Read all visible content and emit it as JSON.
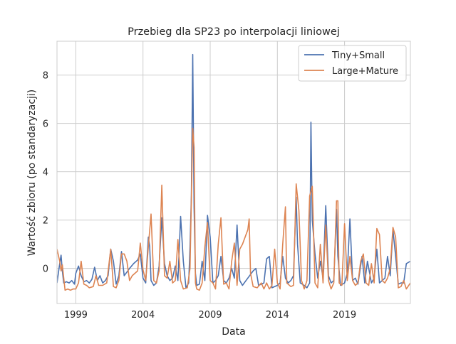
{
  "chart_data": {
    "type": "line",
    "title": "Przebieg dla SP23 po interpolacji liniowej",
    "xlabel": "Data",
    "ylabel": "Wartość zbioru (po standaryzacji)",
    "xlim": [
      1997.6,
      2023.9
    ],
    "ylim": [
      -1.45,
      9.4
    ],
    "x_ticks": [
      1999,
      2004,
      2009,
      2014,
      2019
    ],
    "y_ticks": [
      0,
      2,
      4,
      6,
      8
    ],
    "grid": true,
    "legend_position": "top-right",
    "series": [
      {
        "name": "Tiny+Small",
        "color": "#4c72b0",
        "points": [
          [
            1997.6,
            -0.6
          ],
          [
            1997.8,
            0.2
          ],
          [
            1997.9,
            0.55
          ],
          [
            1998.0,
            -0.1
          ],
          [
            1998.1,
            -0.6
          ],
          [
            1998.3,
            -0.55
          ],
          [
            1998.5,
            -0.6
          ],
          [
            1998.7,
            -0.5
          ],
          [
            1998.9,
            -0.65
          ],
          [
            1999.0,
            -0.2
          ],
          [
            1999.2,
            0.1
          ],
          [
            1999.4,
            -0.3
          ],
          [
            1999.6,
            -0.55
          ],
          [
            1999.8,
            -0.5
          ],
          [
            2000.0,
            -0.6
          ],
          [
            2000.2,
            -0.45
          ],
          [
            2000.4,
            0.05
          ],
          [
            2000.6,
            -0.5
          ],
          [
            2000.8,
            -0.3
          ],
          [
            2001.0,
            -0.6
          ],
          [
            2001.2,
            -0.5
          ],
          [
            2001.4,
            -0.3
          ],
          [
            2001.6,
            0.8
          ],
          [
            2001.8,
            0.3
          ],
          [
            2002.0,
            -0.65
          ],
          [
            2002.2,
            -0.3
          ],
          [
            2002.4,
            0.7
          ],
          [
            2002.6,
            -0.3
          ],
          [
            2002.8,
            -0.15
          ],
          [
            2003.0,
            0.0
          ],
          [
            2003.3,
            0.2
          ],
          [
            2003.6,
            0.35
          ],
          [
            2003.8,
            0.6
          ],
          [
            2004.0,
            -0.4
          ],
          [
            2004.2,
            -0.6
          ],
          [
            2004.4,
            1.3
          ],
          [
            2004.5,
            0.9
          ],
          [
            2004.6,
            -0.5
          ],
          [
            2004.8,
            -0.7
          ],
          [
            2005.0,
            -0.6
          ],
          [
            2005.2,
            0.1
          ],
          [
            2005.4,
            2.1
          ],
          [
            2005.6,
            0.2
          ],
          [
            2005.8,
            -0.3
          ],
          [
            2006.0,
            -0.5
          ],
          [
            2006.2,
            -0.4
          ],
          [
            2006.4,
            0.1
          ],
          [
            2006.6,
            -0.5
          ],
          [
            2006.8,
            2.15
          ],
          [
            2007.0,
            0.3
          ],
          [
            2007.2,
            -0.8
          ],
          [
            2007.4,
            -0.6
          ],
          [
            2007.5,
            0.9
          ],
          [
            2007.6,
            3.0
          ],
          [
            2007.7,
            8.85
          ],
          [
            2007.8,
            2.5
          ],
          [
            2007.9,
            -0.2
          ],
          [
            2008.0,
            -0.7
          ],
          [
            2008.2,
            -0.65
          ],
          [
            2008.4,
            0.3
          ],
          [
            2008.6,
            -0.5
          ],
          [
            2008.8,
            2.2
          ],
          [
            2009.0,
            1.3
          ],
          [
            2009.2,
            -0.6
          ],
          [
            2009.4,
            -0.5
          ],
          [
            2009.6,
            -0.3
          ],
          [
            2009.8,
            0.5
          ],
          [
            2010.0,
            -0.5
          ],
          [
            2010.2,
            -0.6
          ],
          [
            2010.4,
            -0.4
          ],
          [
            2010.6,
            0.0
          ],
          [
            2010.8,
            -0.4
          ],
          [
            2011.0,
            1.8
          ],
          [
            2011.2,
            -0.5
          ],
          [
            2011.4,
            -0.7
          ],
          [
            2011.8,
            -0.4
          ],
          [
            2012.2,
            -0.1
          ],
          [
            2012.4,
            0.0
          ],
          [
            2012.6,
            -0.7
          ],
          [
            2013.0,
            -0.6
          ],
          [
            2013.2,
            0.4
          ],
          [
            2013.4,
            0.5
          ],
          [
            2013.6,
            -0.8
          ],
          [
            2014.0,
            -0.7
          ],
          [
            2014.2,
            -0.6
          ],
          [
            2014.4,
            0.5
          ],
          [
            2014.6,
            -0.4
          ],
          [
            2014.8,
            -0.6
          ],
          [
            2015.0,
            -0.5
          ],
          [
            2015.2,
            -0.3
          ],
          [
            2015.4,
            2.95
          ],
          [
            2015.5,
            1.0
          ],
          [
            2015.7,
            -0.6
          ],
          [
            2016.0,
            -0.7
          ],
          [
            2016.2,
            -0.8
          ],
          [
            2016.4,
            -0.6
          ],
          [
            2016.5,
            6.05
          ],
          [
            2016.6,
            2.0
          ],
          [
            2016.8,
            0.6
          ],
          [
            2017.0,
            -0.4
          ],
          [
            2017.2,
            0.3
          ],
          [
            2017.4,
            -0.4
          ],
          [
            2017.6,
            2.6
          ],
          [
            2017.8,
            -0.3
          ],
          [
            2018.0,
            -0.6
          ],
          [
            2018.2,
            -0.5
          ],
          [
            2018.4,
            2.45
          ],
          [
            2018.5,
            0.5
          ],
          [
            2018.7,
            -0.7
          ],
          [
            2019.0,
            -0.6
          ],
          [
            2019.2,
            -0.2
          ],
          [
            2019.4,
            2.05
          ],
          [
            2019.6,
            -0.5
          ],
          [
            2019.8,
            -0.4
          ],
          [
            2020.0,
            -0.65
          ],
          [
            2020.3,
            0.5
          ],
          [
            2020.5,
            -0.6
          ],
          [
            2020.7,
            0.3
          ],
          [
            2021.0,
            -0.6
          ],
          [
            2021.2,
            -0.4
          ],
          [
            2021.4,
            0.8
          ],
          [
            2021.6,
            -0.6
          ],
          [
            2021.8,
            -0.5
          ],
          [
            2022.0,
            -0.4
          ],
          [
            2022.2,
            0.5
          ],
          [
            2022.4,
            -0.3
          ],
          [
            2022.6,
            1.6
          ],
          [
            2022.8,
            0.5
          ],
          [
            2023.0,
            -0.65
          ],
          [
            2023.2,
            -0.6
          ],
          [
            2023.4,
            -0.6
          ],
          [
            2023.6,
            0.2
          ],
          [
            2023.9,
            0.3
          ]
        ]
      },
      {
        "name": "Large+Mature",
        "color": "#dd8452",
        "points": [
          [
            1997.6,
            0.8
          ],
          [
            1997.8,
            0.3
          ],
          [
            1997.9,
            -0.1
          ],
          [
            1998.0,
            0.15
          ],
          [
            1998.2,
            -0.9
          ],
          [
            1998.4,
            -0.85
          ],
          [
            1998.6,
            -0.9
          ],
          [
            1998.8,
            -0.85
          ],
          [
            1999.0,
            -0.85
          ],
          [
            1999.2,
            -0.6
          ],
          [
            1999.4,
            0.3
          ],
          [
            1999.6,
            -0.65
          ],
          [
            1999.8,
            -0.7
          ],
          [
            2000.0,
            -0.8
          ],
          [
            2000.3,
            -0.75
          ],
          [
            2000.5,
            -0.3
          ],
          [
            2000.7,
            -0.7
          ],
          [
            2001.0,
            -0.7
          ],
          [
            2001.3,
            -0.6
          ],
          [
            2001.6,
            0.8
          ],
          [
            2001.8,
            -0.75
          ],
          [
            2002.0,
            -0.8
          ],
          [
            2002.2,
            -0.5
          ],
          [
            2002.4,
            0.6
          ],
          [
            2002.6,
            0.6
          ],
          [
            2002.8,
            0.3
          ],
          [
            2003.0,
            -0.5
          ],
          [
            2003.2,
            -0.3
          ],
          [
            2003.6,
            -0.1
          ],
          [
            2003.8,
            1.05
          ],
          [
            2004.0,
            -0.05
          ],
          [
            2004.2,
            -0.5
          ],
          [
            2004.4,
            0.9
          ],
          [
            2004.6,
            2.25
          ],
          [
            2004.8,
            -0.5
          ],
          [
            2005.0,
            -0.6
          ],
          [
            2005.2,
            -0.1
          ],
          [
            2005.4,
            3.45
          ],
          [
            2005.6,
            -0.3
          ],
          [
            2005.8,
            -0.4
          ],
          [
            2006.0,
            0.3
          ],
          [
            2006.2,
            -0.6
          ],
          [
            2006.4,
            -0.5
          ],
          [
            2006.6,
            1.2
          ],
          [
            2006.8,
            -0.5
          ],
          [
            2007.0,
            -0.85
          ],
          [
            2007.3,
            -0.8
          ],
          [
            2007.5,
            0.0
          ],
          [
            2007.7,
            5.8
          ],
          [
            2007.8,
            5.0
          ],
          [
            2007.9,
            -0.6
          ],
          [
            2008.0,
            -0.85
          ],
          [
            2008.2,
            -0.9
          ],
          [
            2008.4,
            -0.6
          ],
          [
            2008.6,
            0.9
          ],
          [
            2008.8,
            1.9
          ],
          [
            2009.0,
            -0.5
          ],
          [
            2009.2,
            -0.6
          ],
          [
            2009.4,
            -0.85
          ],
          [
            2009.6,
            1.0
          ],
          [
            2009.8,
            2.1
          ],
          [
            2010.0,
            -0.65
          ],
          [
            2010.2,
            -0.6
          ],
          [
            2010.4,
            -0.85
          ],
          [
            2010.6,
            0.3
          ],
          [
            2010.8,
            1.05
          ],
          [
            2011.0,
            -0.7
          ],
          [
            2011.2,
            0.8
          ],
          [
            2011.4,
            1.0
          ],
          [
            2011.8,
            1.6
          ],
          [
            2011.9,
            2.05
          ],
          [
            2012.0,
            -0.2
          ],
          [
            2012.2,
            -0.75
          ],
          [
            2012.5,
            -0.8
          ],
          [
            2012.8,
            -0.6
          ],
          [
            2013.0,
            -0.85
          ],
          [
            2013.2,
            -0.6
          ],
          [
            2013.4,
            -0.85
          ],
          [
            2013.6,
            -0.7
          ],
          [
            2013.8,
            0.8
          ],
          [
            2014.0,
            -0.6
          ],
          [
            2014.2,
            -0.85
          ],
          [
            2014.4,
            1.0
          ],
          [
            2014.6,
            2.55
          ],
          [
            2014.7,
            -0.6
          ],
          [
            2015.0,
            -0.75
          ],
          [
            2015.2,
            -0.7
          ],
          [
            2015.4,
            3.5
          ],
          [
            2015.6,
            2.4
          ],
          [
            2015.8,
            -0.5
          ],
          [
            2016.0,
            -0.85
          ],
          [
            2016.2,
            -0.5
          ],
          [
            2016.4,
            3.0
          ],
          [
            2016.6,
            3.4
          ],
          [
            2016.8,
            -0.6
          ],
          [
            2017.0,
            -0.8
          ],
          [
            2017.2,
            1.0
          ],
          [
            2017.4,
            -0.6
          ],
          [
            2017.6,
            1.8
          ],
          [
            2017.8,
            -0.5
          ],
          [
            2018.0,
            -0.85
          ],
          [
            2018.2,
            -0.6
          ],
          [
            2018.4,
            2.8
          ],
          [
            2018.5,
            2.8
          ],
          [
            2018.6,
            -0.6
          ],
          [
            2018.8,
            -0.7
          ],
          [
            2019.0,
            1.85
          ],
          [
            2019.2,
            -0.5
          ],
          [
            2019.4,
            0.5
          ],
          [
            2019.6,
            -0.5
          ],
          [
            2019.8,
            -0.7
          ],
          [
            2020.0,
            -0.6
          ],
          [
            2020.2,
            0.3
          ],
          [
            2020.4,
            0.6
          ],
          [
            2020.6,
            -0.6
          ],
          [
            2020.8,
            -0.7
          ],
          [
            2021.0,
            0.2
          ],
          [
            2021.2,
            -0.6
          ],
          [
            2021.4,
            1.65
          ],
          [
            2021.6,
            1.4
          ],
          [
            2021.8,
            -0.5
          ],
          [
            2022.0,
            -0.6
          ],
          [
            2022.2,
            -0.4
          ],
          [
            2022.4,
            0.0
          ],
          [
            2022.6,
            1.7
          ],
          [
            2022.8,
            1.3
          ],
          [
            2023.0,
            -0.8
          ],
          [
            2023.2,
            -0.75
          ],
          [
            2023.4,
            -0.5
          ],
          [
            2023.6,
            -0.85
          ],
          [
            2023.9,
            -0.6
          ]
        ]
      }
    ]
  }
}
